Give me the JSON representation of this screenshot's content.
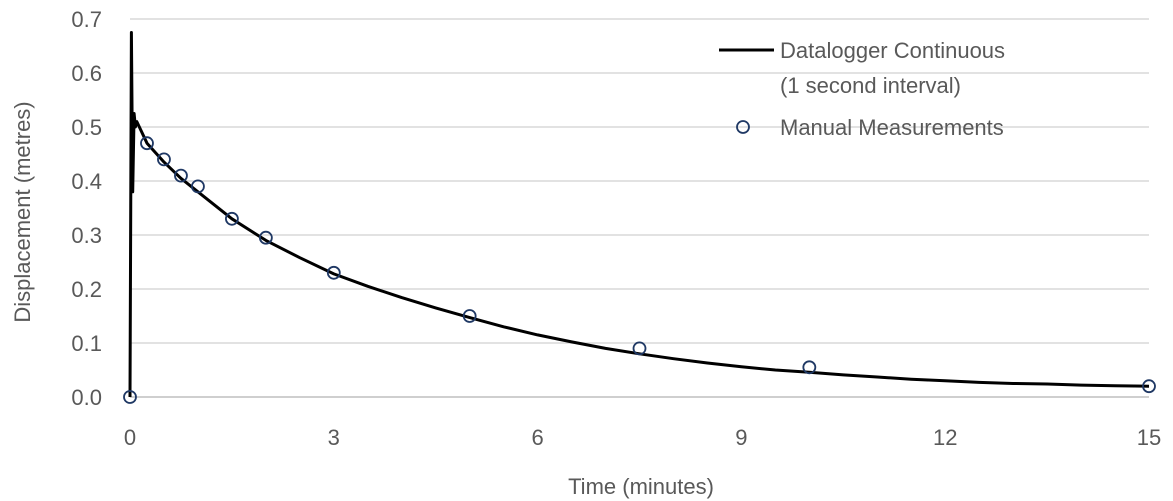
{
  "chart_data": {
    "type": "scatter",
    "xlabel": "Time (minutes)",
    "ylabel": "Displacement (metres)",
    "xlim": [
      0,
      15
    ],
    "ylim": [
      0,
      0.7
    ],
    "xticks": [
      "0",
      "3",
      "6",
      "9",
      "12",
      "15"
    ],
    "yticks": [
      "0.0",
      "0.1",
      "0.2",
      "0.3",
      "0.4",
      "0.5",
      "0.6",
      "0.7"
    ],
    "grid": "horizontal",
    "legend_position": "top-right",
    "series": [
      {
        "name": "Datalogger Continuous",
        "name_line2": "(1 second interval)",
        "style": "line",
        "color": "#000000",
        "x": [
          0,
          0.02,
          0.04,
          0.06,
          0.08,
          0.1,
          0.25,
          0.5,
          0.75,
          1.0,
          1.5,
          2.0,
          2.5,
          3.0,
          3.5,
          4.0,
          4.5,
          5.0,
          5.5,
          6.0,
          6.5,
          7.0,
          7.5,
          8.0,
          8.5,
          9.0,
          9.5,
          10.0,
          10.5,
          11.0,
          11.5,
          12.0,
          12.5,
          13.0,
          13.5,
          14.0,
          14.5,
          15.0
        ],
        "y": [
          0.0,
          0.675,
          0.38,
          0.525,
          0.5,
          0.51,
          0.47,
          0.435,
          0.405,
          0.38,
          0.33,
          0.29,
          0.258,
          0.228,
          0.205,
          0.184,
          0.165,
          0.147,
          0.13,
          0.115,
          0.102,
          0.09,
          0.08,
          0.071,
          0.063,
          0.056,
          0.05,
          0.046,
          0.041,
          0.037,
          0.033,
          0.03,
          0.027,
          0.025,
          0.024,
          0.022,
          0.021,
          0.02
        ]
      },
      {
        "name": "Manual Measurements",
        "style": "marker",
        "color": "#1f3864",
        "x": [
          0,
          0.25,
          0.5,
          0.75,
          1.0,
          1.5,
          2.0,
          3.0,
          5.0,
          7.5,
          10.0,
          15.0
        ],
        "y": [
          0.0,
          0.47,
          0.44,
          0.41,
          0.39,
          0.33,
          0.295,
          0.23,
          0.15,
          0.09,
          0.055,
          0.02
        ]
      }
    ]
  }
}
